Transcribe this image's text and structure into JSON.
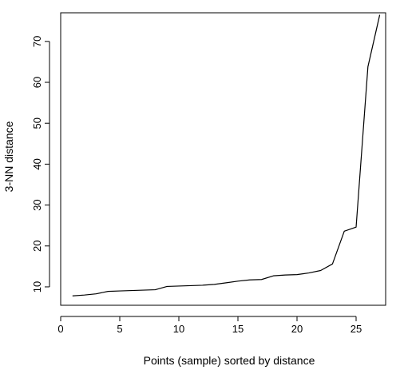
{
  "chart_data": {
    "type": "line",
    "xlabel": "Points (sample) sorted by distance",
    "ylabel": "3-NN distance",
    "xlim": [
      0,
      27.5
    ],
    "ylim": [
      5.5,
      77
    ],
    "x_ticks": [
      0,
      5,
      10,
      15,
      20,
      25
    ],
    "y_ticks": [
      10,
      20,
      30,
      40,
      50,
      60,
      70
    ],
    "grid": false,
    "line_color": "#000000",
    "series": [
      {
        "x": [
          1,
          2,
          3,
          4,
          5,
          6,
          7,
          8,
          9,
          10,
          11,
          12,
          13,
          14,
          15,
          16,
          17,
          18,
          19,
          20,
          21,
          22,
          23,
          24,
          25,
          26,
          27
        ],
        "values": [
          7.8,
          8.0,
          8.3,
          8.9,
          9.0,
          9.1,
          9.2,
          9.3,
          10.1,
          10.2,
          10.3,
          10.4,
          10.6,
          11.0,
          11.4,
          11.7,
          11.8,
          12.7,
          12.9,
          13.0,
          13.4,
          14.0,
          15.6,
          23.6,
          24.6,
          63.8,
          76.5
        ]
      }
    ]
  }
}
